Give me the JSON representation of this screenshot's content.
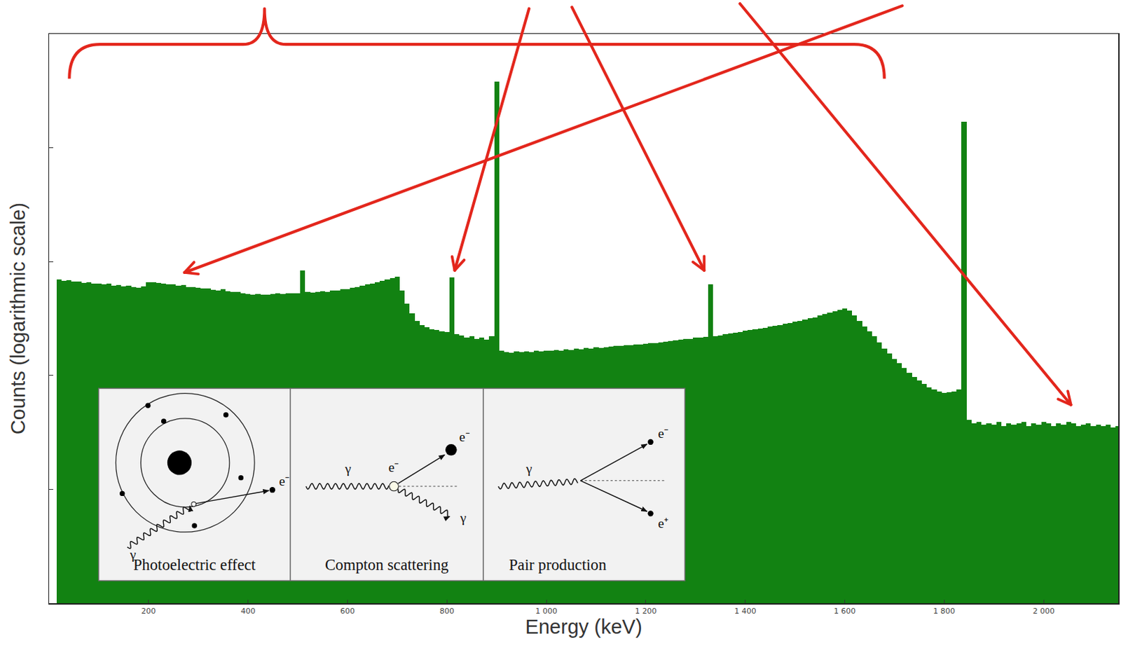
{
  "chart_data": {
    "type": "bar",
    "x_label": "Energy (keV)",
    "y_label": "Counts (logarithmic scale)",
    "color": "#128212",
    "log": "y",
    "grid": false,
    "tick_labels": "x",
    "xlim": [
      0,
      2150
    ],
    "xticks": [
      200,
      400,
      600,
      800,
      {
        "value": 1000,
        "label": "1 000"
      },
      {
        "value": 1200,
        "label": "1 200"
      },
      {
        "value": 1400,
        "label": "1 400"
      },
      {
        "value": 1600,
        "label": "1 600"
      },
      {
        "value": 1800,
        "label": "1 800"
      },
      {
        "value": 2000,
        "label": "2 000"
      }
    ],
    "ylim": [
      1,
      100000
    ],
    "yticks": [
      10,
      100,
      1000,
      10000
    ],
    "x": [
      20,
      30,
      40,
      50,
      60,
      70,
      80,
      90,
      100,
      110,
      120,
      130,
      140,
      150,
      160,
      170,
      180,
      190,
      200,
      210,
      220,
      230,
      240,
      250,
      260,
      270,
      280,
      290,
      300,
      310,
      320,
      330,
      340,
      350,
      360,
      370,
      380,
      390,
      400,
      410,
      420,
      430,
      440,
      450,
      460,
      470,
      480,
      490,
      500,
      510,
      520,
      530,
      540,
      550,
      560,
      570,
      580,
      590,
      600,
      610,
      620,
      630,
      640,
      650,
      660,
      670,
      680,
      690,
      700,
      710,
      720,
      730,
      740,
      750,
      760,
      770,
      780,
      790,
      800,
      810,
      820,
      830,
      840,
      850,
      860,
      870,
      880,
      890,
      900,
      910,
      920,
      930,
      940,
      950,
      960,
      970,
      980,
      990,
      1000,
      1010,
      1020,
      1030,
      1040,
      1050,
      1060,
      1070,
      1080,
      1090,
      1100,
      1110,
      1120,
      1130,
      1140,
      1150,
      1160,
      1170,
      1180,
      1190,
      1200,
      1210,
      1220,
      1230,
      1240,
      1250,
      1260,
      1270,
      1280,
      1290,
      1300,
      1310,
      1320,
      1330,
      1340,
      1350,
      1360,
      1370,
      1380,
      1390,
      1400,
      1410,
      1420,
      1430,
      1440,
      1450,
      1460,
      1470,
      1480,
      1490,
      1500,
      1510,
      1520,
      1530,
      1540,
      1550,
      1560,
      1570,
      1580,
      1590,
      1600,
      1610,
      1620,
      1630,
      1640,
      1650,
      1660,
      1670,
      1680,
      1690,
      1700,
      1710,
      1720,
      1730,
      1740,
      1750,
      1760,
      1770,
      1780,
      1790,
      1800,
      1810,
      1820,
      1830,
      1840,
      1850,
      1860,
      1870,
      1880,
      1890,
      1900,
      1910,
      1920,
      1930,
      1940,
      1950,
      1960,
      1970,
      1980,
      1990,
      2000,
      2010,
      2020,
      2030,
      2040,
      2050,
      2060,
      2070,
      2080,
      2090,
      2100,
      2110,
      2120,
      2130,
      2140,
      2150
    ],
    "values": [
      700,
      680,
      690,
      665,
      670,
      650,
      660,
      640,
      645,
      630,
      640,
      615,
      625,
      605,
      615,
      600,
      590,
      610,
      655,
      660,
      650,
      645,
      630,
      635,
      615,
      620,
      600,
      595,
      590,
      580,
      585,
      565,
      560,
      570,
      550,
      545,
      540,
      530,
      520,
      515,
      520,
      510,
      515,
      520,
      525,
      520,
      530,
      525,
      530,
      840,
      540,
      535,
      545,
      550,
      545,
      555,
      560,
      570,
      575,
      590,
      600,
      615,
      630,
      645,
      660,
      680,
      700,
      720,
      735,
      560,
      430,
      350,
      300,
      275,
      265,
      255,
      250,
      245,
      240,
      730,
      230,
      225,
      215,
      220,
      210,
      215,
      205,
      220,
      38000,
      165,
      160,
      158,
      162,
      160,
      163,
      161,
      165,
      163,
      166,
      164,
      168,
      166,
      170,
      168,
      172,
      170,
      174,
      172,
      176,
      175,
      178,
      180,
      182,
      181,
      185,
      184,
      188,
      187,
      190,
      193,
      192,
      196,
      198,
      200,
      203,
      205,
      208,
      210,
      214,
      216,
      218,
      630,
      222,
      226,
      230,
      233,
      238,
      242,
      246,
      250,
      255,
      258,
      262,
      268,
      272,
      278,
      284,
      290,
      296,
      302,
      310,
      318,
      325,
      335,
      345,
      355,
      365,
      375,
      385,
      370,
      335,
      300,
      270,
      245,
      220,
      195,
      172,
      155,
      140,
      128,
      116,
      106,
      97,
      90,
      84,
      79,
      75,
      72,
      70,
      71,
      72,
      75,
      17000,
      41,
      38,
      39,
      37,
      38,
      37,
      39,
      36,
      38,
      37,
      38,
      39,
      36,
      38,
      37,
      39,
      38,
      36,
      38,
      37,
      39,
      38,
      36,
      37,
      38,
      36,
      37,
      36,
      37,
      35,
      36
    ],
    "inset": {
      "panels": [
        {
          "title": "Photoelectric effect",
          "labels": [
            "γ",
            "e⁻"
          ]
        },
        {
          "title": "Compton scattering",
          "labels": [
            "γ",
            "e⁻",
            "e⁻",
            "γ"
          ]
        },
        {
          "title": "Pair production",
          "labels": [
            "γ",
            "e⁻",
            "e⁺"
          ]
        }
      ]
    }
  }
}
